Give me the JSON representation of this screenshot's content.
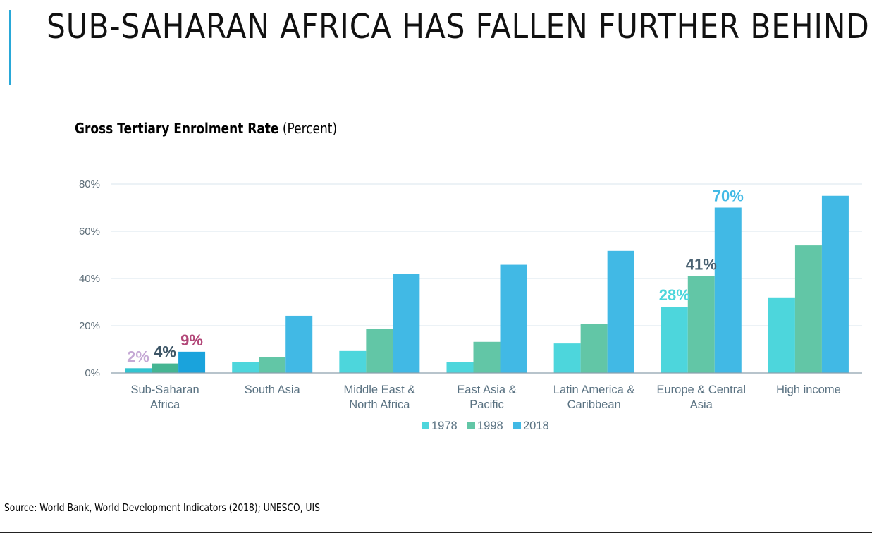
{
  "slide": {
    "title": "SUB-SAHARAN AFRICA HAS FALLEN FURTHER BEHIND",
    "accent_color": "#29a8d8",
    "source": "Source: World Bank, World Development Indicators (2018); UNESCO, UIS"
  },
  "chart_heading": {
    "bold": "Gross Tertiary Enrolment Rate",
    "unit": "(Percent)"
  },
  "chart_data": {
    "type": "bar",
    "title": "Gross Tertiary Enrolment Rate (Percent)",
    "categories": [
      [
        "Sub-Saharan",
        "Africa"
      ],
      [
        "South Asia"
      ],
      [
        "Middle East &",
        "North Africa"
      ],
      [
        "East Asia &",
        "Pacific"
      ],
      [
        "Latin America &",
        "Caribbean"
      ],
      [
        "Europe & Central",
        "Asia"
      ],
      [
        "High income"
      ]
    ],
    "series": [
      {
        "name": "1978",
        "color": "#4dd6dc",
        "values": [
          2,
          4.5,
          9.3,
          4.5,
          12.5,
          28,
          32
        ]
      },
      {
        "name": "1998",
        "color": "#62c6a6",
        "values": [
          4,
          6.6,
          18.8,
          13.2,
          20.6,
          41,
          54
        ]
      },
      {
        "name": "2018",
        "color": "#41b9e5",
        "values": [
          9,
          24.2,
          42,
          45.8,
          51.7,
          70,
          75
        ]
      }
    ],
    "ylim": [
      0,
      80
    ],
    "yticks": [
      "0%",
      "20%",
      "40%",
      "60%",
      "80%"
    ],
    "ytick_values": [
      0,
      20,
      40,
      60,
      80
    ],
    "grid": true,
    "legend": "bottom-center",
    "annotations": [
      {
        "text": "2%",
        "category": 0,
        "series": 0,
        "color": "#c5a9d5"
      },
      {
        "text": "4%",
        "category": 0,
        "series": 1,
        "color": "#3d5566"
      },
      {
        "text": "9%",
        "category": 0,
        "series": 2,
        "color": "#b24778"
      },
      {
        "text": "28%",
        "category": 5,
        "series": 0,
        "color": "#4dd6dc"
      },
      {
        "text": "41%",
        "category": 5,
        "series": 1,
        "color": "#4a6272"
      },
      {
        "text": "70%",
        "category": 5,
        "series": 2,
        "color": "#41b9e5"
      }
    ],
    "highlight": {
      "category": 0,
      "colors": [
        "#32c4d0",
        "#45b592",
        "#1aa3dc"
      ]
    }
  }
}
